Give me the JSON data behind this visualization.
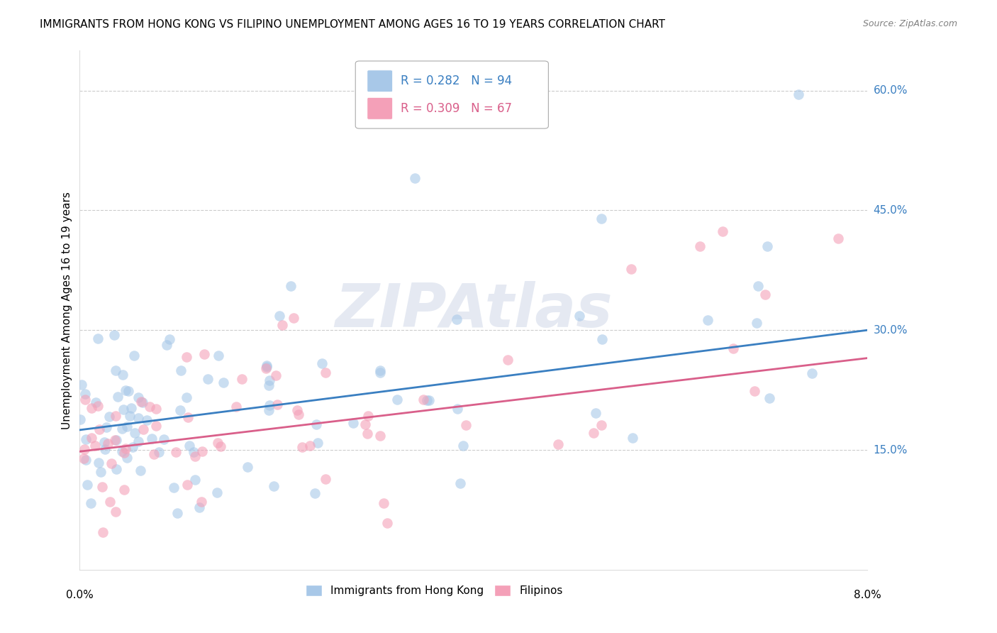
{
  "title": "IMMIGRANTS FROM HONG KONG VS FILIPINO UNEMPLOYMENT AMONG AGES 16 TO 19 YEARS CORRELATION CHART",
  "source": "Source: ZipAtlas.com",
  "ylabel": "Unemployment Among Ages 16 to 19 years",
  "yticks": [
    0.0,
    0.15,
    0.3,
    0.45,
    0.6
  ],
  "ytick_labels": [
    "",
    "15.0%",
    "30.0%",
    "45.0%",
    "60.0%"
  ],
  "xlim": [
    0.0,
    0.08
  ],
  "ylim": [
    0.0,
    0.65
  ],
  "series1_color": "#a8c8e8",
  "series2_color": "#f4a0b8",
  "line1_color": "#3a7fc1",
  "line2_color": "#d95f8a",
  "watermark": "ZIPAtlas",
  "series1_name": "Immigrants from Hong Kong",
  "series2_name": "Filipinos",
  "title_fontsize": 11,
  "axis_label_fontsize": 11,
  "tick_fontsize": 11,
  "legend_fontsize": 12,
  "scatter_alpha": 0.6,
  "scatter_size": 110,
  "n1": 94,
  "n2": 67,
  "line1_x0": 0.0,
  "line1_y0": 0.175,
  "line1_x1": 0.08,
  "line1_y1": 0.3,
  "line2_x0": 0.0,
  "line2_y0": 0.148,
  "line2_x1": 0.08,
  "line2_y1": 0.265
}
